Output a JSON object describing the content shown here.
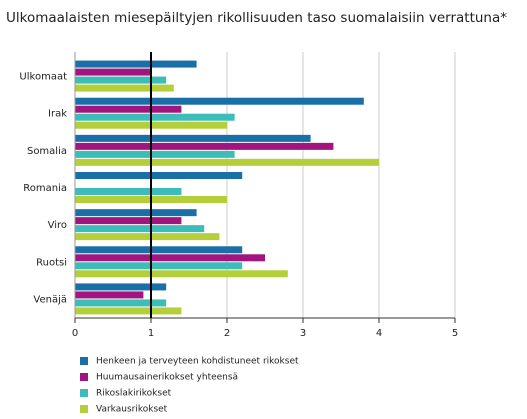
{
  "chart_data": {
    "type": "hbar",
    "title": "Ulkomaalaisten miesepäiltyjen rikollisuuden taso suomalaisiin verrattuna*",
    "categories": [
      "Ulkomaat",
      "Irak",
      "Somalia",
      "Romania",
      "Viro",
      "Ruotsi",
      "Venäjä"
    ],
    "series": [
      {
        "name": "Henkeen ja terveyteen kohdistuneet rikokset",
        "color": "#1a6fa8",
        "values": [
          1.6,
          3.8,
          3.1,
          2.2,
          1.6,
          2.2,
          1.2
        ]
      },
      {
        "name": "Huumausainerikokset yhteensä",
        "color": "#a0157e",
        "values": [
          1.0,
          1.4,
          3.4,
          null,
          1.4,
          2.5,
          0.9
        ]
      },
      {
        "name": "Rikoslakirikokset",
        "color": "#3dbdb8",
        "values": [
          1.2,
          2.1,
          2.1,
          1.4,
          1.7,
          2.2,
          1.2
        ]
      },
      {
        "name": "Varkausrikokset",
        "color": "#b5cf3a",
        "values": [
          1.3,
          2.0,
          4.0,
          2.0,
          1.9,
          2.8,
          1.4
        ]
      }
    ],
    "xlim": [
      0,
      5
    ],
    "xticks": [
      0,
      1,
      2,
      3,
      4,
      5
    ],
    "grid": true,
    "reference_line": 1
  }
}
